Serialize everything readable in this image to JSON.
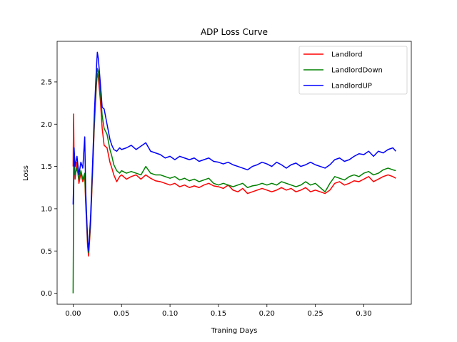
{
  "chart_data": {
    "type": "line",
    "title": "ADP Loss Curve",
    "xlabel": "Traning Days",
    "ylabel": "Loss",
    "xlim": [
      -0.0165,
      0.349
    ],
    "ylim": [
      -0.13,
      2.98
    ],
    "xticks": [
      0.0,
      0.05,
      0.1,
      0.15,
      0.2,
      0.25,
      0.3
    ],
    "xtick_labels": [
      "0.00",
      "0.05",
      "0.10",
      "0.15",
      "0.20",
      "0.25",
      "0.30"
    ],
    "yticks": [
      0.0,
      0.5,
      1.0,
      1.5,
      2.0,
      2.5
    ],
    "ytick_labels": [
      "0.0",
      "0.5",
      "1.0",
      "1.5",
      "2.0",
      "2.5"
    ],
    "grid": false,
    "legend_position": "top-right",
    "series": [
      {
        "name": "Landlord",
        "color": "#ff0000",
        "points": [
          [
            0.0,
            1.5
          ],
          [
            0.0005,
            2.12
          ],
          [
            0.001,
            1.6
          ],
          [
            0.002,
            1.35
          ],
          [
            0.004,
            1.55
          ],
          [
            0.006,
            1.3
          ],
          [
            0.008,
            1.42
          ],
          [
            0.01,
            1.32
          ],
          [
            0.012,
            1.38
          ],
          [
            0.013,
            1.05
          ],
          [
            0.015,
            0.55
          ],
          [
            0.016,
            0.44
          ],
          [
            0.018,
            0.8
          ],
          [
            0.02,
            1.4
          ],
          [
            0.022,
            2.0
          ],
          [
            0.024,
            2.45
          ],
          [
            0.025,
            2.6
          ],
          [
            0.026,
            2.55
          ],
          [
            0.028,
            2.3
          ],
          [
            0.03,
            1.95
          ],
          [
            0.032,
            1.75
          ],
          [
            0.035,
            1.72
          ],
          [
            0.038,
            1.55
          ],
          [
            0.04,
            1.48
          ],
          [
            0.042,
            1.4
          ],
          [
            0.045,
            1.32
          ],
          [
            0.048,
            1.38
          ],
          [
            0.05,
            1.4
          ],
          [
            0.055,
            1.35
          ],
          [
            0.06,
            1.38
          ],
          [
            0.065,
            1.4
          ],
          [
            0.07,
            1.35
          ],
          [
            0.075,
            1.4
          ],
          [
            0.08,
            1.36
          ],
          [
            0.085,
            1.33
          ],
          [
            0.09,
            1.32
          ],
          [
            0.095,
            1.3
          ],
          [
            0.1,
            1.28
          ],
          [
            0.105,
            1.3
          ],
          [
            0.11,
            1.26
          ],
          [
            0.115,
            1.28
          ],
          [
            0.12,
            1.25
          ],
          [
            0.125,
            1.27
          ],
          [
            0.13,
            1.25
          ],
          [
            0.135,
            1.28
          ],
          [
            0.14,
            1.3
          ],
          [
            0.145,
            1.27
          ],
          [
            0.15,
            1.26
          ],
          [
            0.155,
            1.24
          ],
          [
            0.16,
            1.28
          ],
          [
            0.165,
            1.22
          ],
          [
            0.17,
            1.2
          ],
          [
            0.175,
            1.24
          ],
          [
            0.18,
            1.18
          ],
          [
            0.185,
            1.2
          ],
          [
            0.19,
            1.22
          ],
          [
            0.195,
            1.24
          ],
          [
            0.2,
            1.22
          ],
          [
            0.205,
            1.2
          ],
          [
            0.21,
            1.22
          ],
          [
            0.215,
            1.25
          ],
          [
            0.22,
            1.22
          ],
          [
            0.225,
            1.24
          ],
          [
            0.23,
            1.2
          ],
          [
            0.235,
            1.22
          ],
          [
            0.24,
            1.25
          ],
          [
            0.245,
            1.2
          ],
          [
            0.25,
            1.22
          ],
          [
            0.255,
            1.2
          ],
          [
            0.26,
            1.18
          ],
          [
            0.265,
            1.22
          ],
          [
            0.27,
            1.3
          ],
          [
            0.275,
            1.32
          ],
          [
            0.28,
            1.28
          ],
          [
            0.285,
            1.3
          ],
          [
            0.29,
            1.33
          ],
          [
            0.295,
            1.32
          ],
          [
            0.3,
            1.35
          ],
          [
            0.305,
            1.38
          ],
          [
            0.31,
            1.32
          ],
          [
            0.315,
            1.35
          ],
          [
            0.32,
            1.38
          ],
          [
            0.325,
            1.4
          ],
          [
            0.33,
            1.38
          ],
          [
            0.333,
            1.36
          ]
        ]
      },
      {
        "name": "LandlordDown",
        "color": "#008000",
        "points": [
          [
            0.0,
            0.0
          ],
          [
            0.0005,
            1.1
          ],
          [
            0.001,
            1.62
          ],
          [
            0.002,
            1.4
          ],
          [
            0.004,
            1.48
          ],
          [
            0.006,
            1.35
          ],
          [
            0.008,
            1.45
          ],
          [
            0.01,
            1.35
          ],
          [
            0.012,
            1.42
          ],
          [
            0.013,
            1.1
          ],
          [
            0.015,
            0.6
          ],
          [
            0.016,
            0.48
          ],
          [
            0.018,
            0.85
          ],
          [
            0.02,
            1.45
          ],
          [
            0.022,
            2.05
          ],
          [
            0.024,
            2.5
          ],
          [
            0.025,
            2.66
          ],
          [
            0.026,
            2.62
          ],
          [
            0.028,
            2.4
          ],
          [
            0.03,
            2.1
          ],
          [
            0.032,
            1.95
          ],
          [
            0.035,
            1.88
          ],
          [
            0.038,
            1.7
          ],
          [
            0.04,
            1.62
          ],
          [
            0.042,
            1.52
          ],
          [
            0.045,
            1.45
          ],
          [
            0.048,
            1.42
          ],
          [
            0.05,
            1.45
          ],
          [
            0.055,
            1.42
          ],
          [
            0.06,
            1.44
          ],
          [
            0.065,
            1.42
          ],
          [
            0.07,
            1.4
          ],
          [
            0.075,
            1.5
          ],
          [
            0.08,
            1.42
          ],
          [
            0.085,
            1.4
          ],
          [
            0.09,
            1.4
          ],
          [
            0.095,
            1.38
          ],
          [
            0.1,
            1.36
          ],
          [
            0.105,
            1.38
          ],
          [
            0.11,
            1.34
          ],
          [
            0.115,
            1.36
          ],
          [
            0.12,
            1.33
          ],
          [
            0.125,
            1.35
          ],
          [
            0.13,
            1.32
          ],
          [
            0.135,
            1.34
          ],
          [
            0.14,
            1.36
          ],
          [
            0.145,
            1.3
          ],
          [
            0.15,
            1.28
          ],
          [
            0.155,
            1.3
          ],
          [
            0.16,
            1.28
          ],
          [
            0.165,
            1.26
          ],
          [
            0.17,
            1.28
          ],
          [
            0.175,
            1.3
          ],
          [
            0.18,
            1.25
          ],
          [
            0.185,
            1.27
          ],
          [
            0.19,
            1.28
          ],
          [
            0.195,
            1.3
          ],
          [
            0.2,
            1.28
          ],
          [
            0.205,
            1.3
          ],
          [
            0.21,
            1.28
          ],
          [
            0.215,
            1.32
          ],
          [
            0.22,
            1.3
          ],
          [
            0.225,
            1.28
          ],
          [
            0.23,
            1.26
          ],
          [
            0.235,
            1.28
          ],
          [
            0.24,
            1.32
          ],
          [
            0.245,
            1.28
          ],
          [
            0.25,
            1.3
          ],
          [
            0.255,
            1.25
          ],
          [
            0.26,
            1.2
          ],
          [
            0.265,
            1.3
          ],
          [
            0.27,
            1.38
          ],
          [
            0.275,
            1.36
          ],
          [
            0.28,
            1.34
          ],
          [
            0.285,
            1.38
          ],
          [
            0.29,
            1.4
          ],
          [
            0.295,
            1.38
          ],
          [
            0.3,
            1.42
          ],
          [
            0.305,
            1.44
          ],
          [
            0.31,
            1.4
          ],
          [
            0.315,
            1.42
          ],
          [
            0.32,
            1.46
          ],
          [
            0.325,
            1.48
          ],
          [
            0.33,
            1.46
          ],
          [
            0.333,
            1.45
          ]
        ]
      },
      {
        "name": "LandlordUP",
        "color": "#0000ff",
        "points": [
          [
            0.0,
            1.05
          ],
          [
            0.0005,
            1.3
          ],
          [
            0.001,
            1.72
          ],
          [
            0.002,
            1.5
          ],
          [
            0.004,
            1.62
          ],
          [
            0.006,
            1.4
          ],
          [
            0.008,
            1.55
          ],
          [
            0.01,
            1.48
          ],
          [
            0.012,
            1.85
          ],
          [
            0.013,
            1.2
          ],
          [
            0.015,
            0.62
          ],
          [
            0.016,
            0.5
          ],
          [
            0.018,
            0.9
          ],
          [
            0.02,
            1.5
          ],
          [
            0.022,
            2.15
          ],
          [
            0.024,
            2.65
          ],
          [
            0.025,
            2.85
          ],
          [
            0.026,
            2.78
          ],
          [
            0.028,
            2.5
          ],
          [
            0.03,
            2.2
          ],
          [
            0.032,
            2.18
          ],
          [
            0.035,
            2.0
          ],
          [
            0.038,
            1.82
          ],
          [
            0.04,
            1.75
          ],
          [
            0.042,
            1.7
          ],
          [
            0.045,
            1.68
          ],
          [
            0.048,
            1.72
          ],
          [
            0.05,
            1.7
          ],
          [
            0.055,
            1.72
          ],
          [
            0.06,
            1.75
          ],
          [
            0.065,
            1.7
          ],
          [
            0.07,
            1.74
          ],
          [
            0.075,
            1.78
          ],
          [
            0.08,
            1.68
          ],
          [
            0.085,
            1.66
          ],
          [
            0.09,
            1.64
          ],
          [
            0.095,
            1.6
          ],
          [
            0.1,
            1.62
          ],
          [
            0.105,
            1.58
          ],
          [
            0.11,
            1.62
          ],
          [
            0.115,
            1.6
          ],
          [
            0.12,
            1.58
          ],
          [
            0.125,
            1.6
          ],
          [
            0.13,
            1.56
          ],
          [
            0.135,
            1.58
          ],
          [
            0.14,
            1.6
          ],
          [
            0.145,
            1.56
          ],
          [
            0.15,
            1.55
          ],
          [
            0.155,
            1.53
          ],
          [
            0.16,
            1.55
          ],
          [
            0.165,
            1.52
          ],
          [
            0.17,
            1.5
          ],
          [
            0.175,
            1.48
          ],
          [
            0.18,
            1.46
          ],
          [
            0.185,
            1.5
          ],
          [
            0.19,
            1.52
          ],
          [
            0.195,
            1.55
          ],
          [
            0.2,
            1.53
          ],
          [
            0.205,
            1.5
          ],
          [
            0.21,
            1.55
          ],
          [
            0.215,
            1.52
          ],
          [
            0.22,
            1.48
          ],
          [
            0.225,
            1.52
          ],
          [
            0.23,
            1.54
          ],
          [
            0.235,
            1.5
          ],
          [
            0.24,
            1.52
          ],
          [
            0.245,
            1.55
          ],
          [
            0.25,
            1.52
          ],
          [
            0.255,
            1.5
          ],
          [
            0.26,
            1.48
          ],
          [
            0.265,
            1.52
          ],
          [
            0.27,
            1.58
          ],
          [
            0.275,
            1.6
          ],
          [
            0.28,
            1.56
          ],
          [
            0.285,
            1.58
          ],
          [
            0.29,
            1.62
          ],
          [
            0.295,
            1.65
          ],
          [
            0.3,
            1.64
          ],
          [
            0.305,
            1.68
          ],
          [
            0.31,
            1.62
          ],
          [
            0.315,
            1.68
          ],
          [
            0.32,
            1.66
          ],
          [
            0.325,
            1.7
          ],
          [
            0.33,
            1.72
          ],
          [
            0.333,
            1.68
          ]
        ]
      }
    ]
  }
}
